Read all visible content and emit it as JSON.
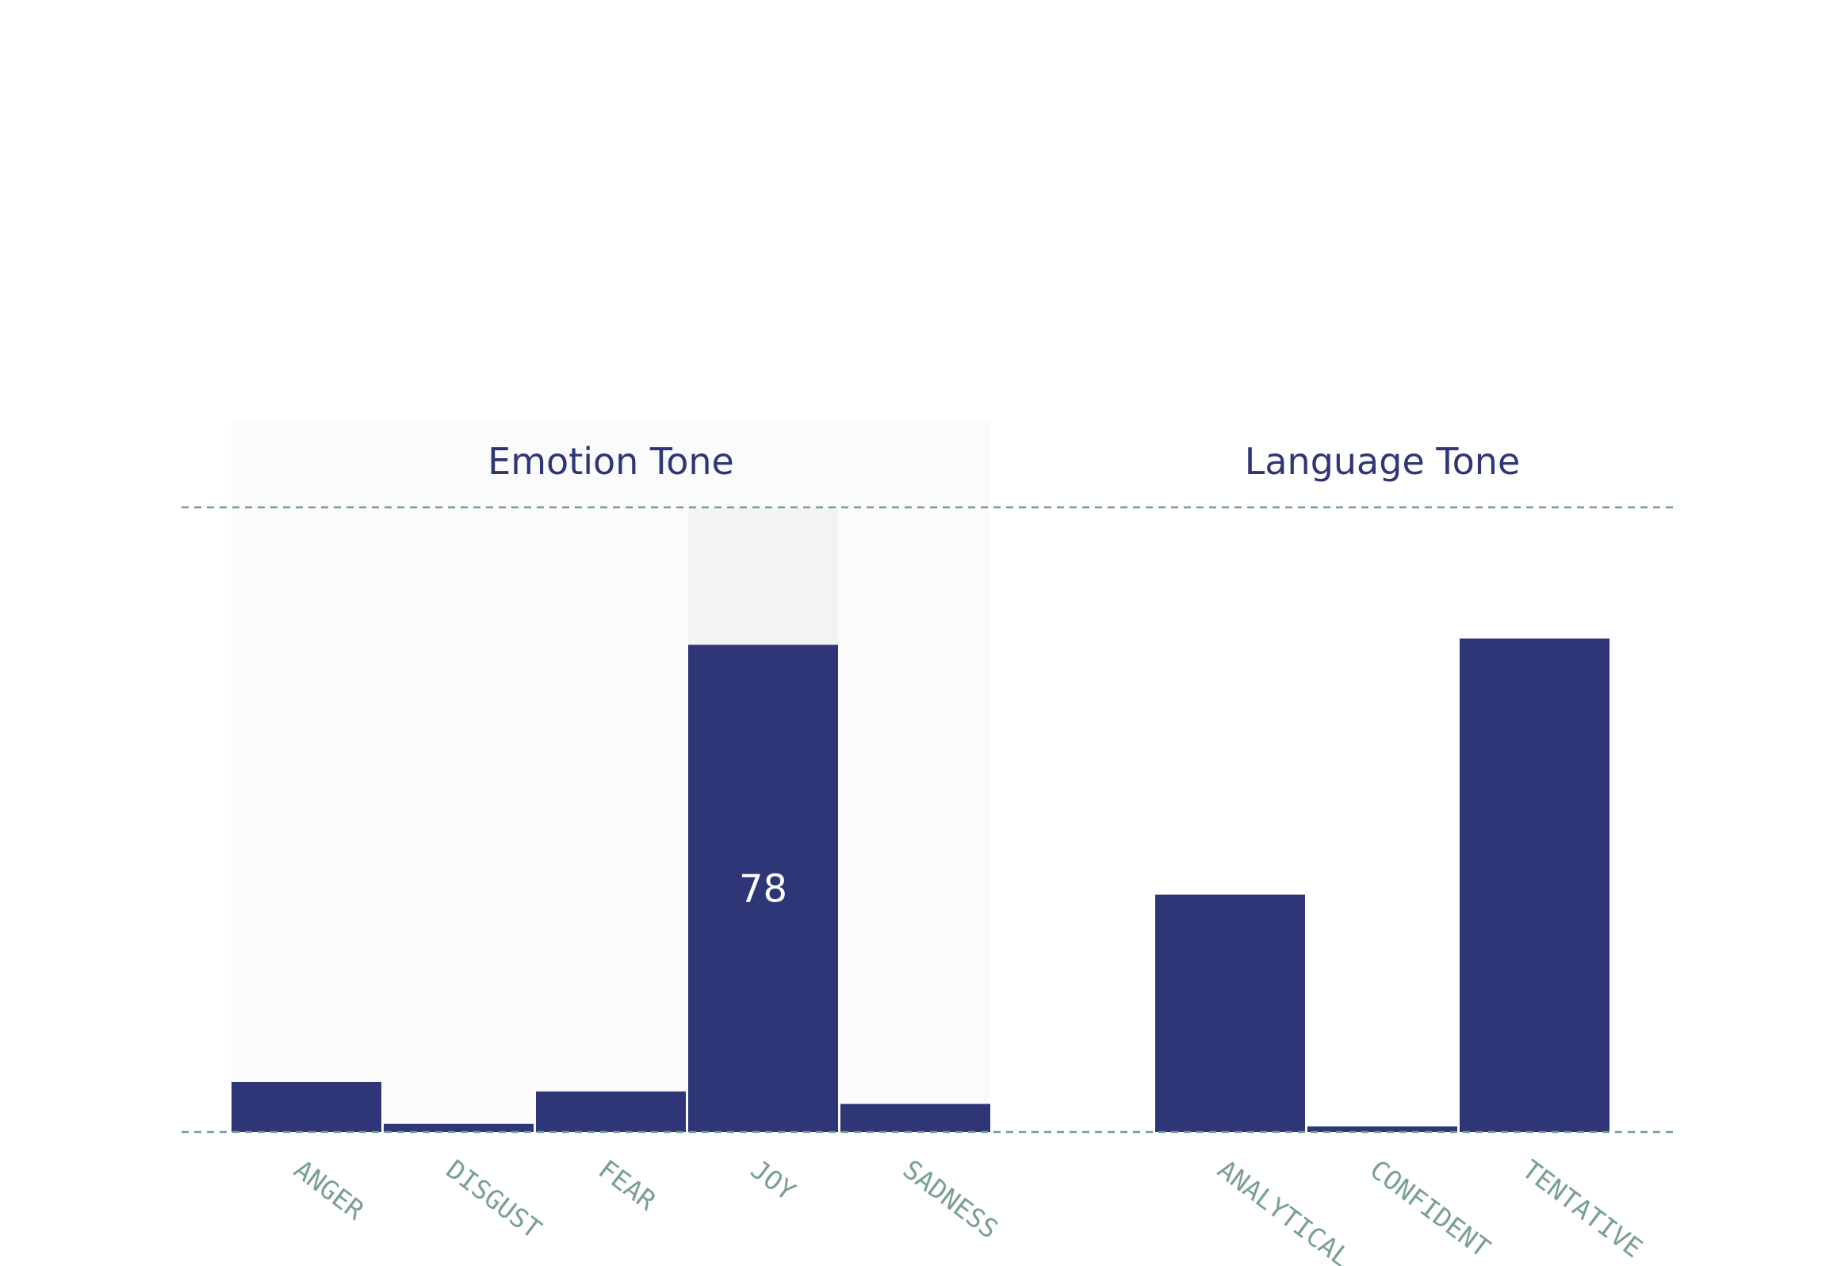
{
  "chart_data": {
    "type": "bar",
    "ylim": [
      0,
      100
    ],
    "grid": false,
    "bar_color": "#2f3678",
    "line_color": "#6f9f90",
    "label_color": "#7aa08e",
    "title_color": "#2f3678",
    "highlight_panel_color": "#fbfbfc",
    "hover_column_color": "#f3f3f4",
    "groups": [
      {
        "title": "Emotion Tone",
        "categories": [
          "ANGER",
          "DISGUST",
          "FEAR",
          "JOY",
          "SADNESS"
        ],
        "values": [
          8,
          1.3,
          6.5,
          78,
          4.5
        ],
        "highlighted": true,
        "hover_index": 3,
        "hover_label": "78"
      },
      {
        "title": "Language Tone",
        "categories": [
          "ANALYTICAL",
          "CONFIDENT",
          "TENTATIVE"
        ],
        "values": [
          38,
          0.9,
          79
        ],
        "highlighted": false
      }
    ]
  }
}
